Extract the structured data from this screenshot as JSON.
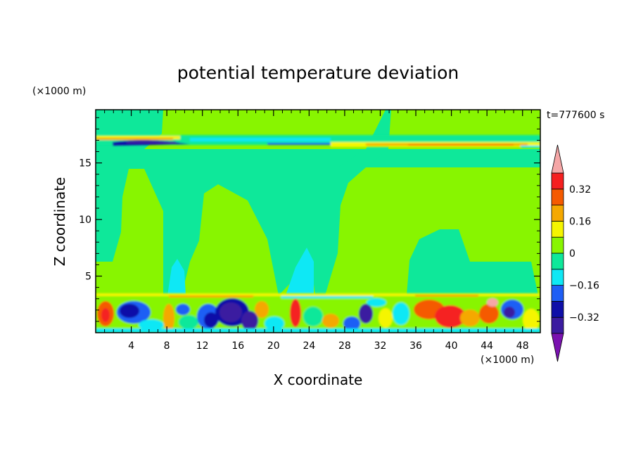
{
  "chart_data": {
    "type": "heatmap",
    "title": "potential temperature deviation",
    "xlabel": "X coordinate",
    "ylabel": "Z coordinate",
    "x_unit": "(×1000 m)",
    "y_unit": "(×1000 m)",
    "time_label": "t=777600 s",
    "xlim": [
      0,
      50
    ],
    "ylim": [
      0,
      19.7
    ],
    "x_ticks": [
      4,
      8,
      12,
      16,
      20,
      24,
      28,
      32,
      36,
      40,
      44,
      48
    ],
    "y_ticks": [
      5,
      10,
      15
    ],
    "colorbar": {
      "levels": [
        -0.4,
        -0.32,
        -0.24,
        -0.16,
        -0.08,
        0,
        0.08,
        0.16,
        0.24,
        0.32,
        0.4
      ],
      "tick_values": [
        0.32,
        0.16,
        0,
        -0.16,
        -0.32
      ],
      "tick_labels": [
        "0.32",
        "0.16",
        "0",
        "−0.16",
        "−0.32"
      ],
      "colors": [
        "#7a12b0",
        "#3b1ca0",
        "#0f0fa8",
        "#1e5ef5",
        "#0ee8f5",
        "#0ee89a",
        "#88f500",
        "#f5f500",
        "#f5a800",
        "#f55a00",
        "#f52020",
        "#f5a6a6"
      ]
    },
    "regions": [
      {
        "name": "upper-layer-background",
        "x": [
          0,
          50
        ],
        "z": [
          3.6,
          19.7
        ],
        "value": 0.04
      },
      {
        "name": "negative-column-west",
        "x": [
          0,
          11.5
        ],
        "z": [
          6,
          19.7
        ],
        "value": -0.04
      },
      {
        "name": "negative-column-central",
        "x": [
          19,
          27
        ],
        "z": [
          13,
          19.7
        ],
        "value": -0.04
      },
      {
        "name": "negative-dome-east",
        "x": [
          35,
          49
        ],
        "z": [
          3.6,
          9.5
        ],
        "value": -0.04
      },
      {
        "name": "stratospheric-band",
        "z": [
          16.5,
          17.3
        ],
        "range": [
          -0.4,
          0.3
        ]
      },
      {
        "name": "boundary-layer-turbulence",
        "z": [
          0,
          3.6
        ],
        "range": [
          -0.4,
          0.32
        ]
      }
    ]
  }
}
